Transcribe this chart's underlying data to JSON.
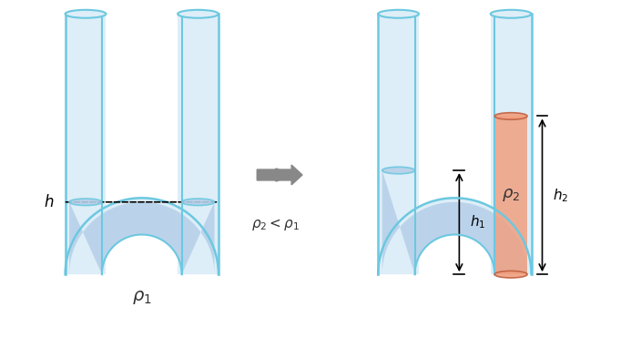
{
  "fig_width": 6.93,
  "fig_height": 3.82,
  "bg_color": "#ffffff",
  "tube_color": "#7dd8e8",
  "tube_edge_color": "#5bbcd6",
  "liquid1_color": "#b8d8e8",
  "liquid1_fill": "#c5dff0",
  "liquid2_color": "#f0a080",
  "liquid2_fill": "#f0a080",
  "arrow_color": "#808080",
  "text_color": "#333333",
  "dashed_color": "#333333",
  "label_h": "h",
  "label_h1": "h_1",
  "label_h2": "h_2",
  "label_rho1": "\\rho_1",
  "label_rho2": "\\rho_2",
  "label_rho2_lt_rho1": "\\rho_2 < \\rho_1"
}
